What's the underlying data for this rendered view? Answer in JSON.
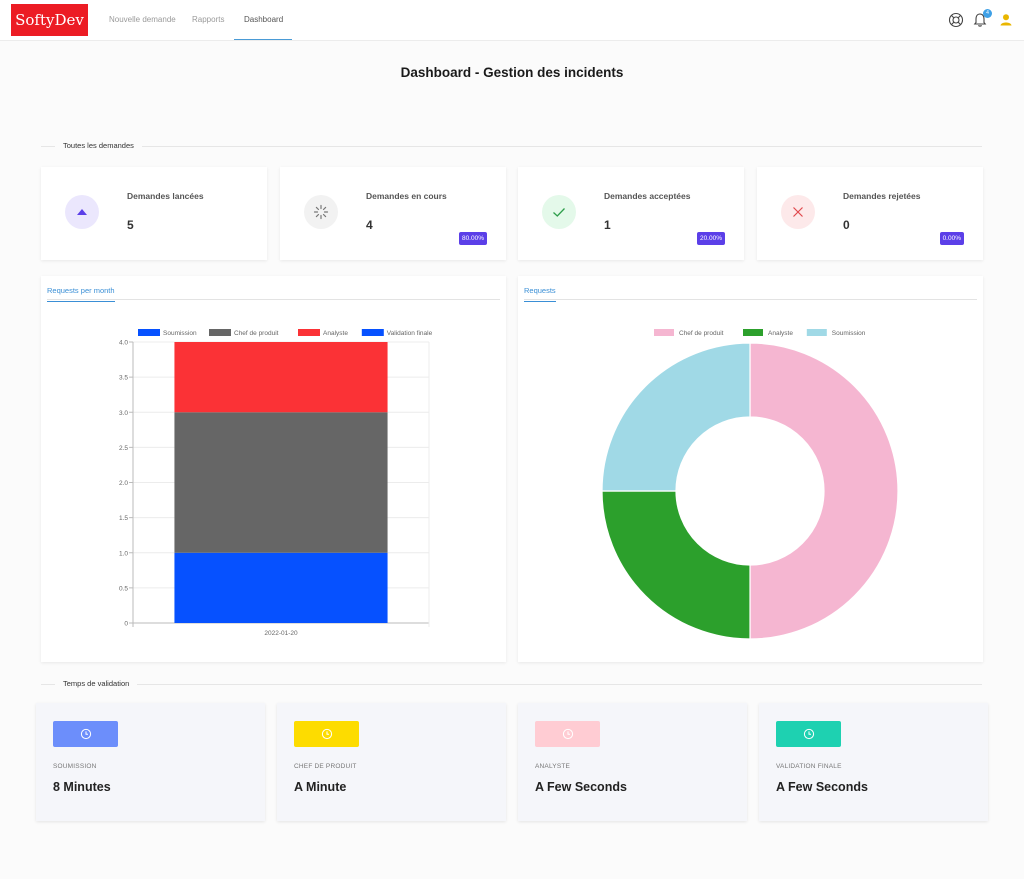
{
  "brand": "SoftyDev",
  "nav": {
    "items": [
      {
        "label": "Nouvelle demande"
      },
      {
        "label": "Rapports"
      },
      {
        "label": "Dashboard"
      }
    ],
    "notification_count": "4",
    "icons": [
      "lifebuoy-icon",
      "bell-icon",
      "user-icon"
    ]
  },
  "page_title": "Dashboard - Gestion des incidents",
  "section_all": "Toutes les demandes",
  "section_time": "Temps de validation",
  "stats": [
    {
      "label": "Demandes lancées",
      "value": "5",
      "pct": "",
      "icon": "triangle-up-icon",
      "color": "#5b3fe8"
    },
    {
      "label": "Demandes en cours",
      "value": "4",
      "pct": "80.00%",
      "icon": "spinner-icon",
      "color": "#777777"
    },
    {
      "label": "Demandes acceptées",
      "value": "1",
      "pct": "20.00%",
      "icon": "check-icon",
      "color": "#2e9e4b"
    },
    {
      "label": "Demandes rejetées",
      "value": "0",
      "pct": "0.00%",
      "icon": "close-icon",
      "color": "#e0474d"
    }
  ],
  "charts": {
    "bar_tab": "Requests per month",
    "donut_tab": "Requests"
  },
  "chart_data": [
    {
      "type": "bar",
      "stacked": true,
      "categories": [
        "2022-01-20"
      ],
      "series": [
        {
          "name": "Soumission",
          "values": [
            1
          ],
          "color": "#0651ff"
        },
        {
          "name": "Chef de produit",
          "values": [
            2
          ],
          "color": "#666666"
        },
        {
          "name": "Analyste",
          "values": [
            1
          ],
          "color": "#fb3236"
        },
        {
          "name": "Validation finale",
          "values": [
            0
          ],
          "color": "#0651ff"
        }
      ],
      "y_ticks": [
        "0",
        "0.5",
        "1.0",
        "1.5",
        "2.0",
        "2.5",
        "3.0",
        "3.5",
        "4.0"
      ],
      "ylim": [
        0,
        4
      ],
      "legend": "top",
      "grid": true
    },
    {
      "type": "pie",
      "donut": true,
      "labels": [
        "Chef de produit",
        "Analyste",
        "Soumission"
      ],
      "values": [
        2,
        1,
        1
      ],
      "colors": [
        "#f5b6d1",
        "#2ca02c",
        "#a0d9e6"
      ],
      "legend": "top"
    }
  ],
  "times": [
    {
      "label": "SOUMISSION",
      "value": "8 Minutes",
      "color": "#6c8efb"
    },
    {
      "label": "CHEF DE PRODUIT",
      "value": "A Minute",
      "color": "#fddc00"
    },
    {
      "label": "ANALYSTE",
      "value": "A Few Seconds",
      "color": "#ffccd3"
    },
    {
      "label": "VALIDATION FINALE",
      "value": "A Few Seconds",
      "color": "#1ed1b1"
    }
  ]
}
